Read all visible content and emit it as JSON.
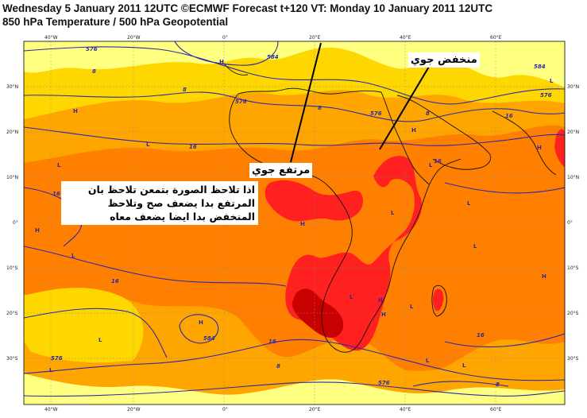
{
  "header": {
    "line1": "Wednesday 5 January 2011 12UTC ©ECMWF Forecast t+120 VT: Monday 10 January 2011 12UTC",
    "line2": "850 hPa Temperature / 500 hPa Geopotential"
  },
  "colors": {
    "cool_yellow": "#ffff80",
    "yellow": "#ffd700",
    "orange_light": "#ffa500",
    "orange": "#ff7f00",
    "red": "#ff2020",
    "dark_red": "#c80000",
    "contour": "#2020a0",
    "coast": "#101010"
  },
  "axes": {
    "top_lon": [
      "40°W",
      "20°W",
      "0°",
      "20°E",
      "40°E",
      "60°E"
    ],
    "bottom_lon": [
      "40°W",
      "20°W",
      "0°",
      "20°E",
      "40°E",
      "60°E"
    ],
    "left_lat": [
      "30°N",
      "20°N",
      "10°N",
      "0°",
      "10°S",
      "20°S",
      "30°S"
    ],
    "right_lat": [
      "30°N",
      "20°N",
      "10°N",
      "0°",
      "10°S",
      "20°S",
      "30°S"
    ]
  },
  "contour_labels": [
    "576",
    "584",
    "576",
    "576",
    "8",
    "8",
    "8",
    "16",
    "16",
    "16",
    "16",
    "16",
    "8",
    "576",
    "584",
    "576",
    "8",
    "16",
    "16",
    "8",
    "584",
    "576"
  ],
  "pressure_marks": [
    "H",
    "H",
    "L",
    "L",
    "H",
    "L",
    "H",
    "L",
    "L",
    "L",
    "L",
    "H",
    "H",
    "L",
    "L",
    "H",
    "L",
    "L",
    "H",
    "L",
    "H",
    "L",
    "L",
    "H"
  ],
  "annotations": {
    "low_label": "منخفض جوي",
    "high_label": "مرتفع جوي",
    "note_line1": "اذا تلاحظ الصورة بتمعن تلاحظ بان",
    "note_line2": "المرتفع بدا يضعف صح وتلاحظ",
    "note_line3": "المنخفض بدا ايضا يضعف معاه"
  }
}
